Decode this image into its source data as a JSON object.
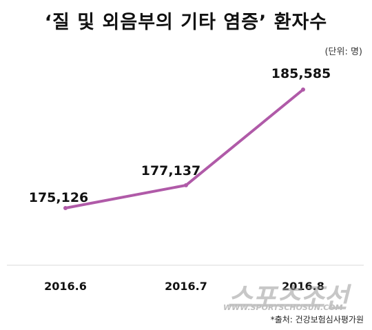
{
  "header": {
    "title": "‘질 및 외음부의 기타 염증’ 환자수",
    "unit": "(단위: 명)"
  },
  "footer": {
    "source": "*출처: 건강보험심사평가원"
  },
  "watermark": {
    "logo_text": "스포츠조선",
    "url_text": "WWW.SPORTSCHOSUN.COM"
  },
  "chart_data": {
    "type": "line",
    "categories": [
      "2016.6",
      "2016.7",
      "2016.8"
    ],
    "values": [
      175126,
      177137,
      185585
    ],
    "value_labels": [
      "175,126",
      "177,137",
      "185,585"
    ],
    "line_color": "#b05aa8",
    "grid": false,
    "legend": "none",
    "title": "‘질 및 외음부의 기타 염증’ 환자수",
    "ylabel": "(단위: 명)"
  }
}
